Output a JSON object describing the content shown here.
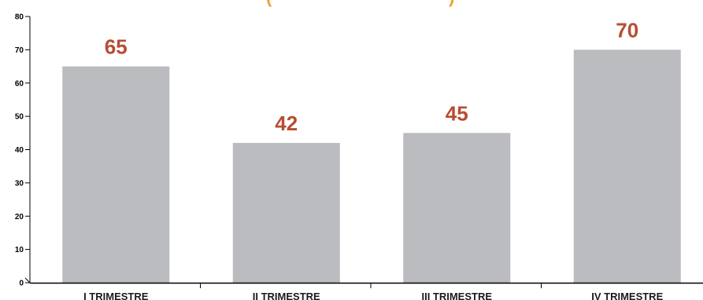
{
  "chart_data": {
    "type": "bar",
    "title_fragments": [
      "(",
      ")"
    ],
    "categories": [
      "I TRIMESTRE",
      "II TRIMESTRE",
      "III TRIMESTRE",
      "IV TRIMESTRE"
    ],
    "values": [
      65,
      42,
      45,
      70
    ],
    "data_labels": [
      "65",
      "42",
      "45",
      "70"
    ],
    "ylim": [
      0,
      80
    ],
    "y_ticks": [
      0,
      10,
      20,
      30,
      40,
      50,
      60,
      70,
      80
    ],
    "y_tick_labels": [
      "0",
      "10",
      "20",
      "30",
      "40",
      "50",
      "60",
      "70",
      "80"
    ],
    "xlabel": "",
    "ylabel": "",
    "grid": false,
    "legend": "none",
    "colors": {
      "bar": "#bbbcbf",
      "data_label": "#b84c33",
      "title": "#f0a030",
      "axis": "#000000"
    }
  }
}
